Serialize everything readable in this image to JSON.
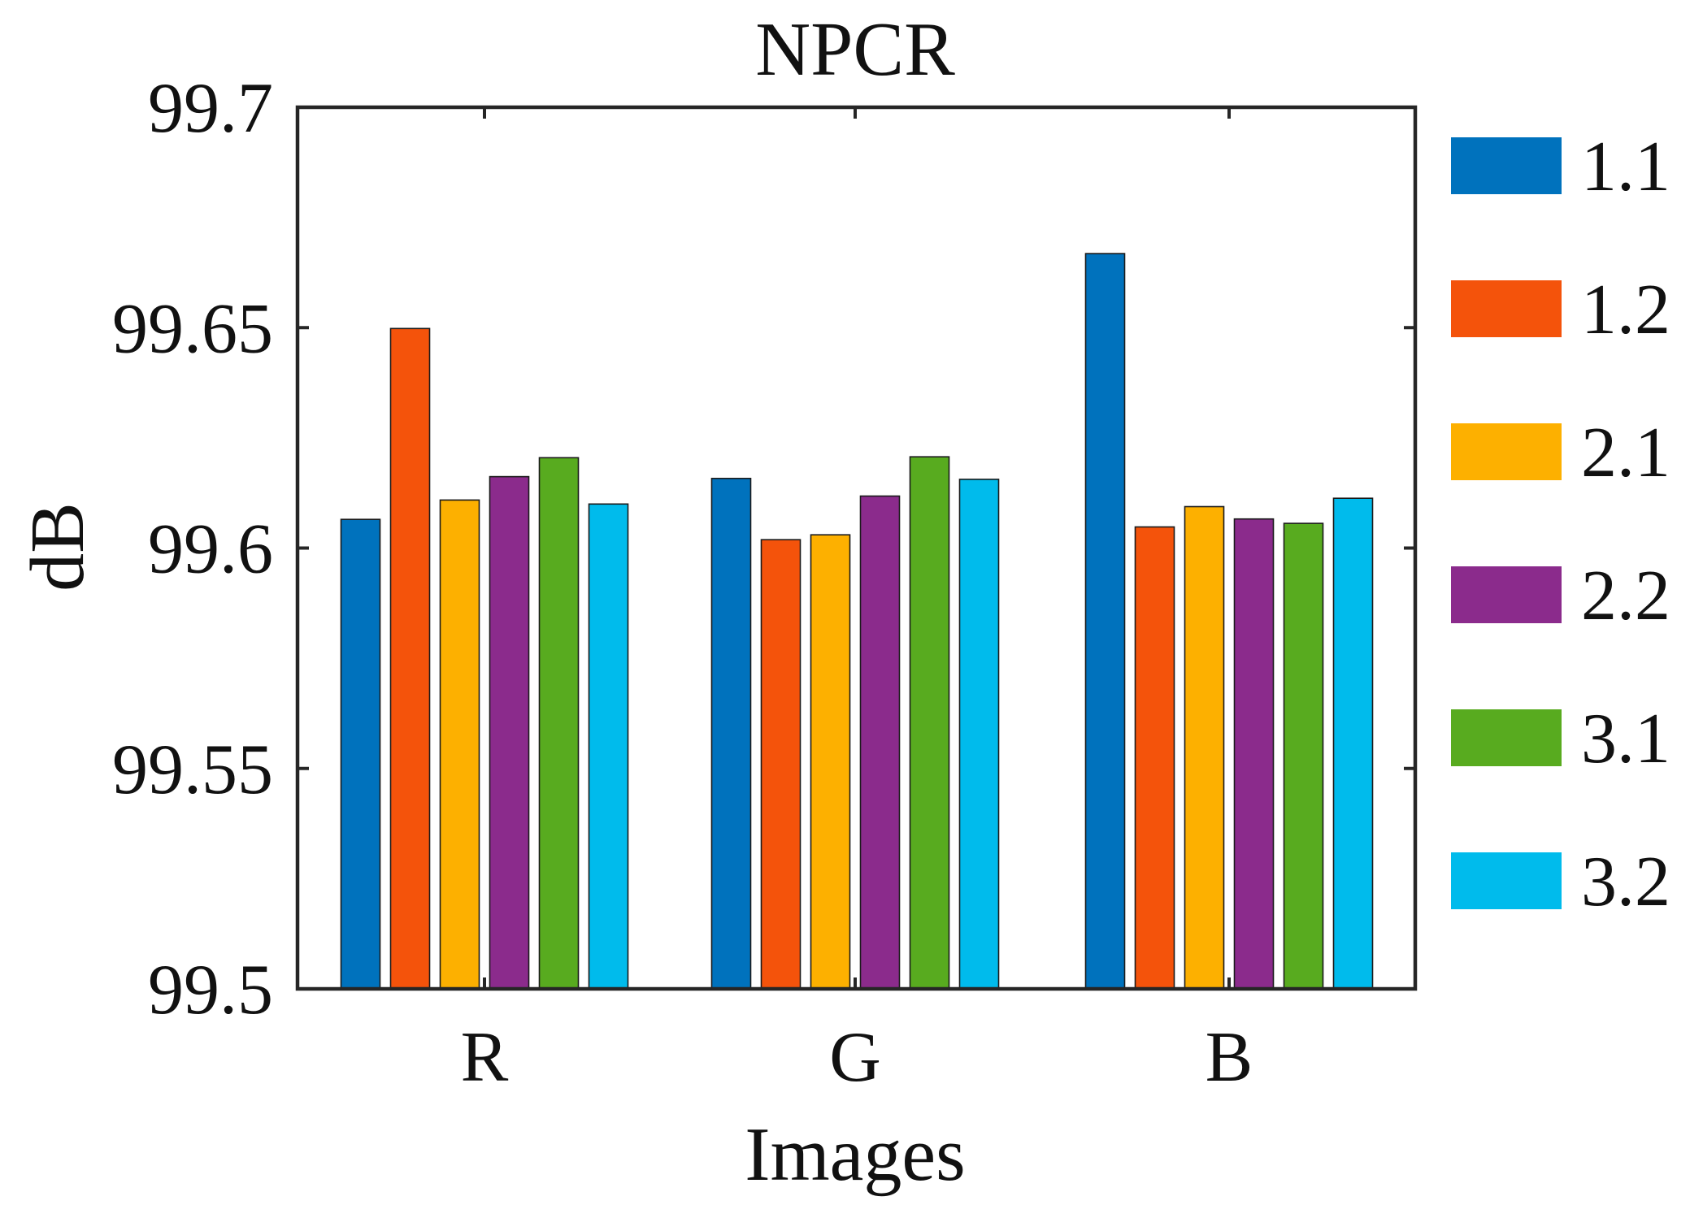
{
  "chart_data": {
    "type": "bar",
    "title": "NPCR",
    "xlabel": "Images",
    "ylabel": "dB",
    "ylim": [
      99.5,
      99.7
    ],
    "yticks": [
      "99.5",
      "99.55",
      "99.6",
      "99.65",
      "99.7"
    ],
    "ytick_values": [
      99.5,
      99.55,
      99.6,
      99.65,
      99.7
    ],
    "categories": [
      "R",
      "G",
      "B"
    ],
    "legend_position": "right",
    "grid": false,
    "series": [
      {
        "name": "1.1",
        "color": "#0072BD",
        "values": [
          99.6065,
          99.6158,
          99.6668
        ]
      },
      {
        "name": "1.2",
        "color": "#F4530B",
        "values": [
          99.6498,
          99.6019,
          99.6048
        ]
      },
      {
        "name": "2.1",
        "color": "#FDB000",
        "values": [
          99.6109,
          99.603,
          99.6094
        ]
      },
      {
        "name": "2.2",
        "color": "#8B2B8C",
        "values": [
          99.6162,
          99.6118,
          99.6066
        ]
      },
      {
        "name": "3.1",
        "color": "#58AB1F",
        "values": [
          99.6205,
          99.6207,
          99.6056
        ]
      },
      {
        "name": "3.2",
        "color": "#00BBEC",
        "values": [
          99.61,
          99.6156,
          99.6113
        ]
      }
    ]
  }
}
